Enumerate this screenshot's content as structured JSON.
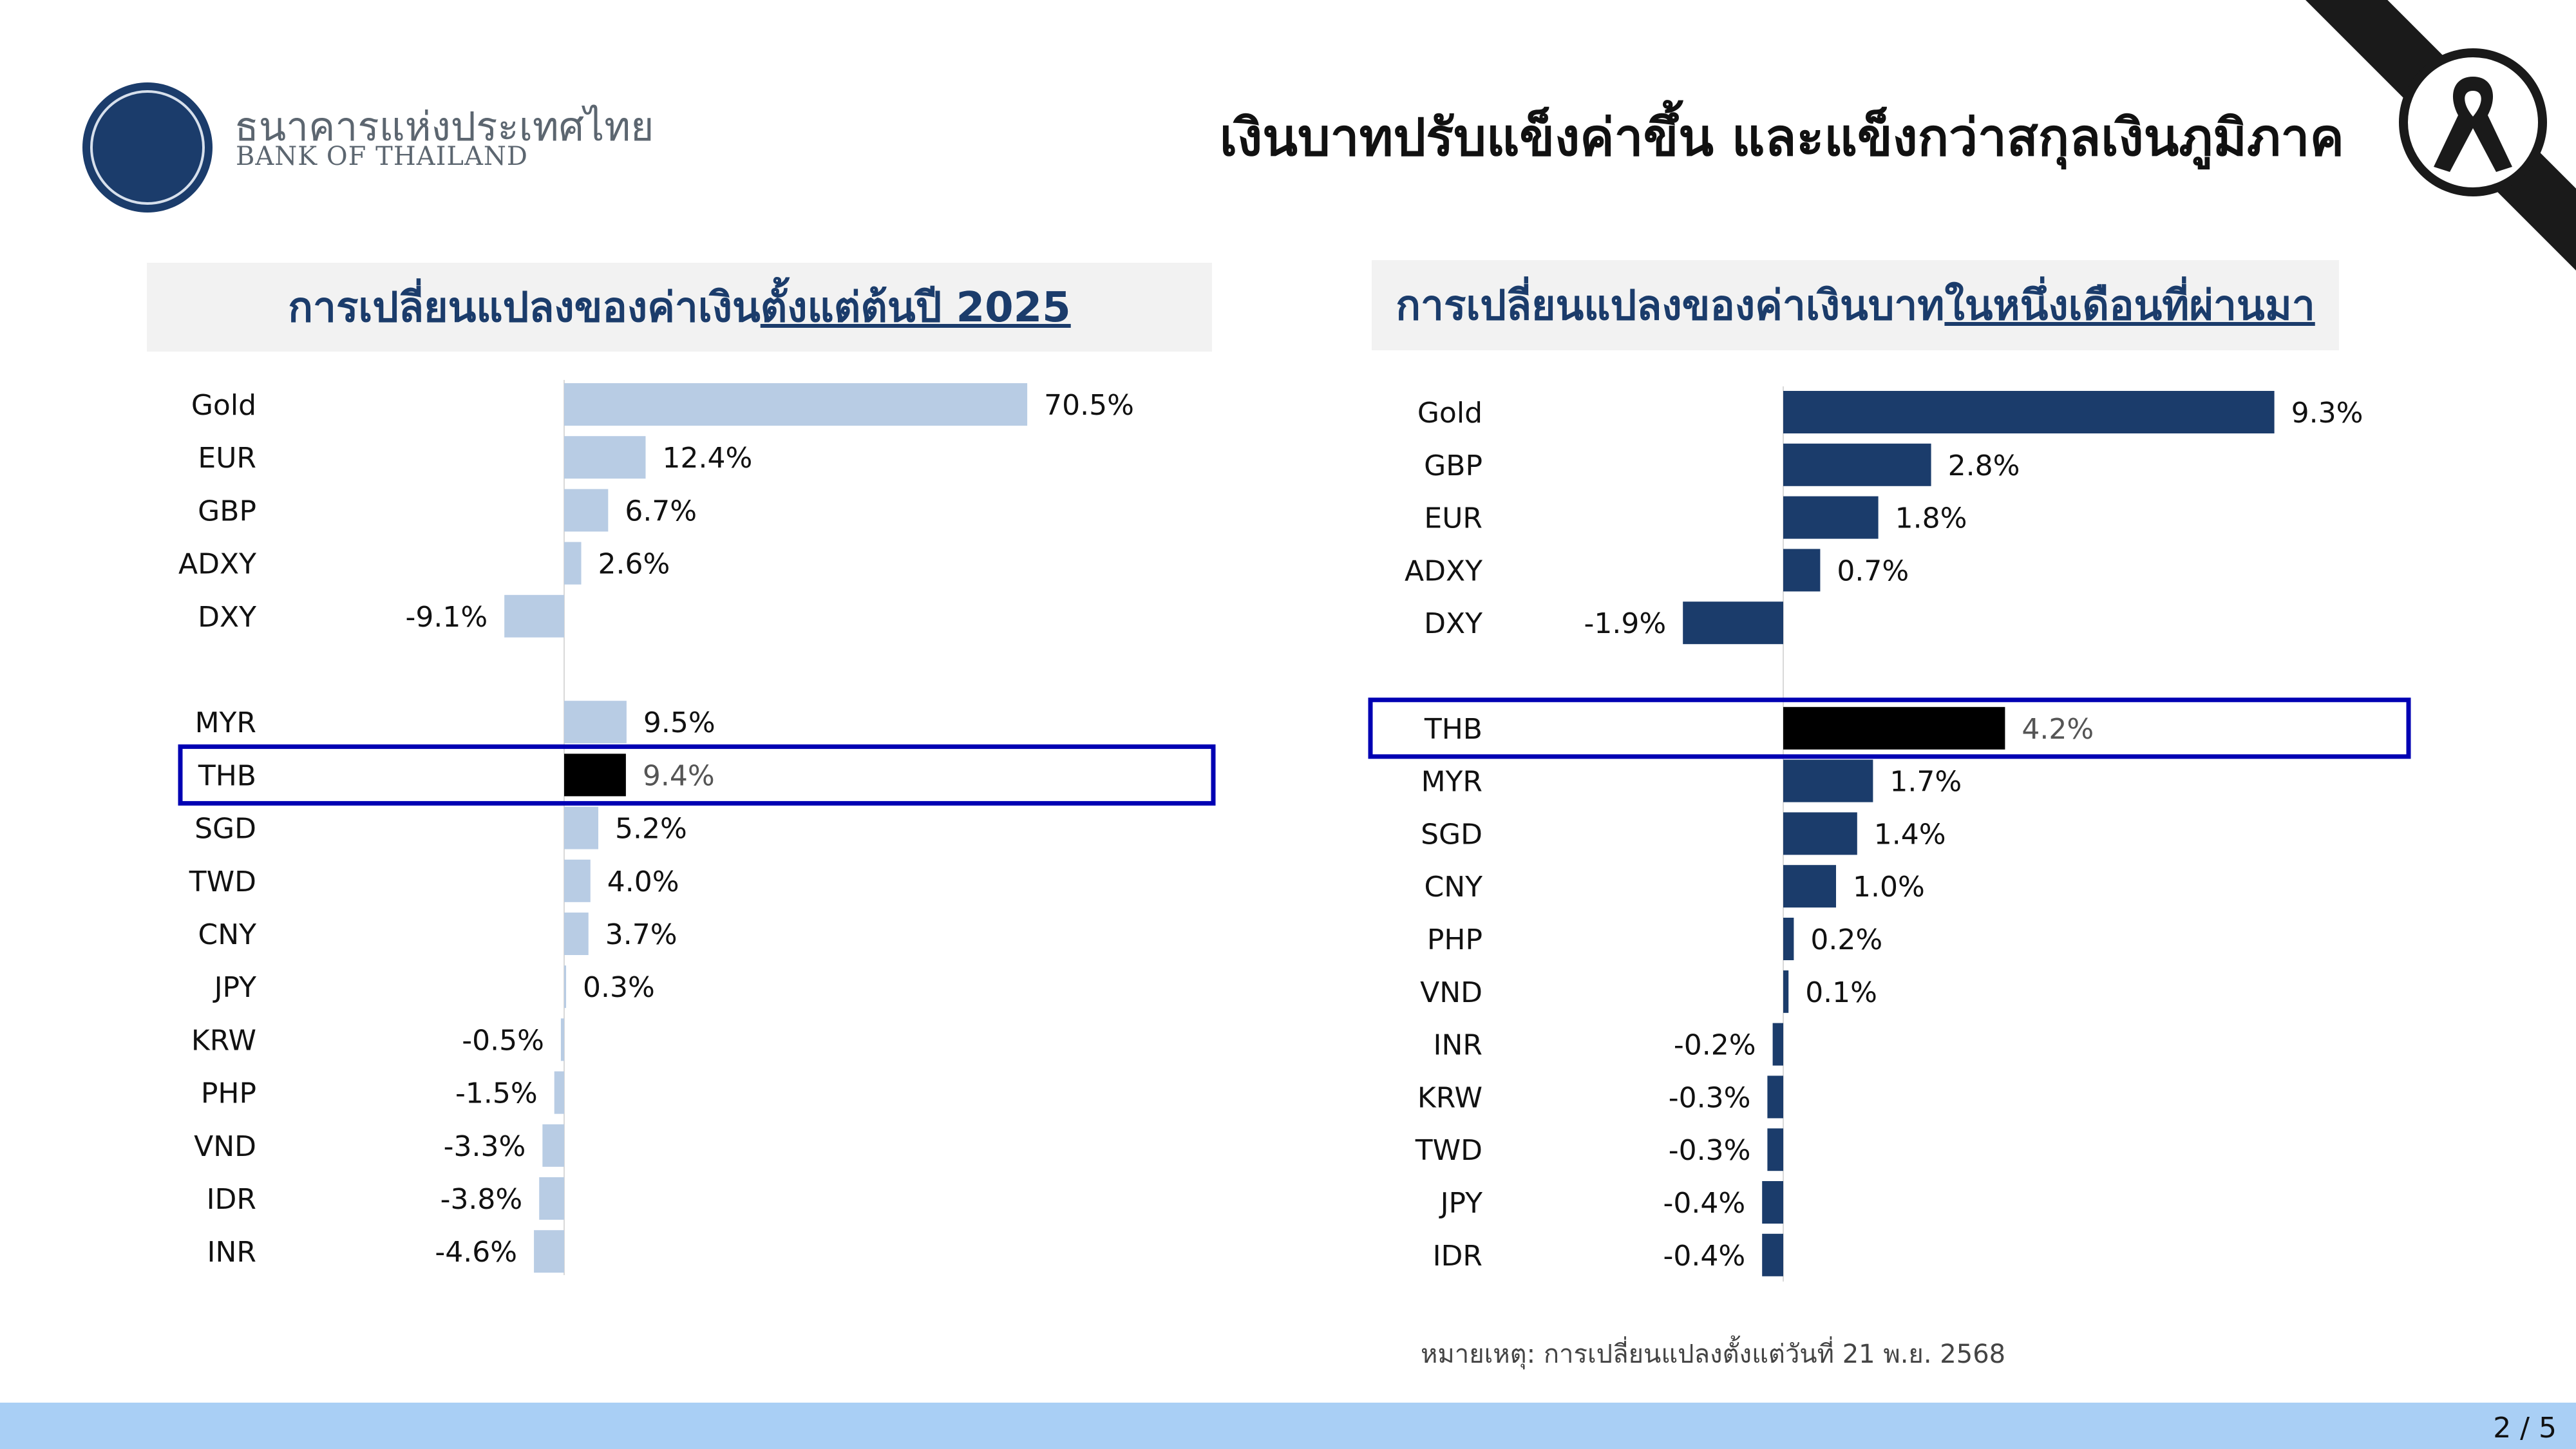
{
  "header": {
    "logo_thai": "ธนาคารแห่งประเทศไทย",
    "logo_english": "BANK OF THAILAND",
    "title": "เงินบาทปรับแข็งค่าขึ้น และแข็งกว่าสกุลเงินภูมิภาค",
    "mourning_icon": "black-ribbon-icon"
  },
  "left_panel": {
    "title_prefix": "การเปลี่ยนแปลงของค่าเงิน",
    "title_underlined": "ตั้งแต่ต้นปี 2025"
  },
  "right_panel": {
    "title_prefix": "การเปลี่ยนแปลงของค่าเงินบาท",
    "title_underlined": "ในหนึ่งเดือนที่ผ่านมา"
  },
  "note": "หมายเหตุ: การเปลี่ยนแปลงตั้งแต่วันที่ 21 พ.ย. 2568",
  "footer": {
    "page": "2 / 5"
  },
  "colors": {
    "left_bar": "#b8cce4",
    "right_bar": "#1b3c6b",
    "highlight_bar": "#000000",
    "highlight_box": "#0000b3",
    "footer": "#a9cff5"
  },
  "chart_data": [
    {
      "type": "bar",
      "orientation": "horizontal",
      "categories": [
        "Gold",
        "EUR",
        "GBP",
        "ADXY",
        "DXY",
        "MYR",
        "THB",
        "SGD",
        "TWD",
        "CNY",
        "JPY",
        "KRW",
        "PHP",
        "VND",
        "IDR",
        "INR"
      ],
      "values": [
        70.5,
        12.4,
        6.7,
        2.6,
        -9.1,
        9.5,
        9.4,
        5.2,
        4.0,
        3.7,
        0.3,
        -0.5,
        -1.5,
        -3.3,
        -3.8,
        -4.6
      ],
      "value_labels": [
        "70.5%",
        "12.4%",
        "6.7%",
        "2.6%",
        "-9.1%",
        "9.5%",
        "9.4%",
        "5.2%",
        "4.0%",
        "3.7%",
        "0.3%",
        "-0.5%",
        "-1.5%",
        "-3.3%",
        "-3.8%",
        "-4.6%"
      ],
      "gap_after_index": 4,
      "highlight": "THB",
      "unit": "%"
    },
    {
      "type": "bar",
      "orientation": "horizontal",
      "categories": [
        "Gold",
        "GBP",
        "EUR",
        "ADXY",
        "DXY",
        "THB",
        "MYR",
        "SGD",
        "CNY",
        "PHP",
        "VND",
        "INR",
        "KRW",
        "TWD",
        "JPY",
        "IDR"
      ],
      "values": [
        9.3,
        2.8,
        1.8,
        0.7,
        -1.9,
        4.2,
        1.7,
        1.4,
        1.0,
        0.2,
        0.1,
        -0.2,
        -0.3,
        -0.3,
        -0.4,
        -0.4
      ],
      "value_labels": [
        "9.3%",
        "2.8%",
        "1.8%",
        "0.7%",
        "-1.9%",
        "4.2%",
        "1.7%",
        "1.4%",
        "1.0%",
        "0.2%",
        "0.1%",
        "-0.2%",
        "-0.3%",
        "-0.3%",
        "-0.4%",
        "-0.4%"
      ],
      "gap_after_index": 4,
      "highlight": "THB",
      "unit": "%"
    }
  ]
}
